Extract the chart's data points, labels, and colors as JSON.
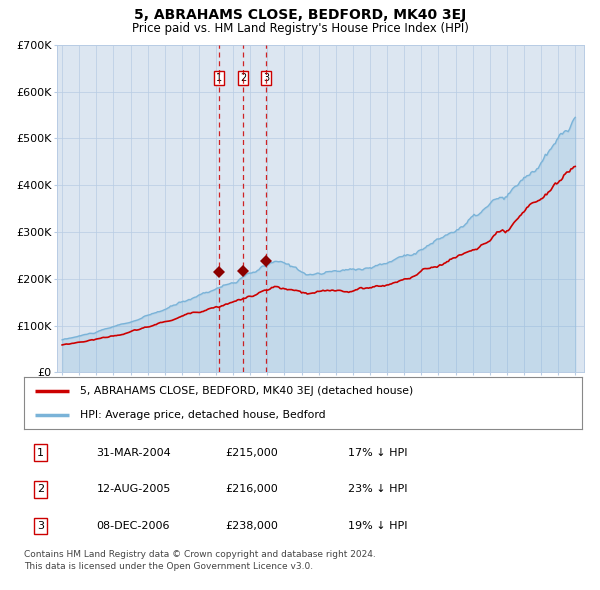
{
  "title": "5, ABRAHAMS CLOSE, BEDFORD, MK40 3EJ",
  "subtitle": "Price paid vs. HM Land Registry's House Price Index (HPI)",
  "plot_bg_color": "#dce6f1",
  "hpi_line_color": "#7ab3d8",
  "price_line_color": "#cc0000",
  "marker_color": "#8b0000",
  "vline_color": "#cc0000",
  "ylim": [
    0,
    700000
  ],
  "yticks": [
    0,
    100000,
    200000,
    300000,
    400000,
    500000,
    600000,
    700000
  ],
  "ytick_labels": [
    "£0",
    "£100K",
    "£200K",
    "£300K",
    "£400K",
    "£500K",
    "£600K",
    "£700K"
  ],
  "year_start": 1995,
  "year_end": 2025,
  "transaction_prices": [
    215000,
    216000,
    238000
  ],
  "transaction_labels": [
    "1",
    "2",
    "3"
  ],
  "legend_line1": "5, ABRAHAMS CLOSE, BEDFORD, MK40 3EJ (detached house)",
  "legend_line2": "HPI: Average price, detached house, Bedford",
  "table_rows": [
    [
      "1",
      "31-MAR-2004",
      "£215,000",
      "17% ↓ HPI"
    ],
    [
      "2",
      "12-AUG-2005",
      "£216,000",
      "23% ↓ HPI"
    ],
    [
      "3",
      "08-DEC-2006",
      "£238,000",
      "19% ↓ HPI"
    ]
  ],
  "footnote": "Contains HM Land Registry data © Crown copyright and database right 2024.\nThis data is licensed under the Open Government Licence v3.0.",
  "grid_color": "#b8cce4",
  "outer_bg": "#ffffff"
}
